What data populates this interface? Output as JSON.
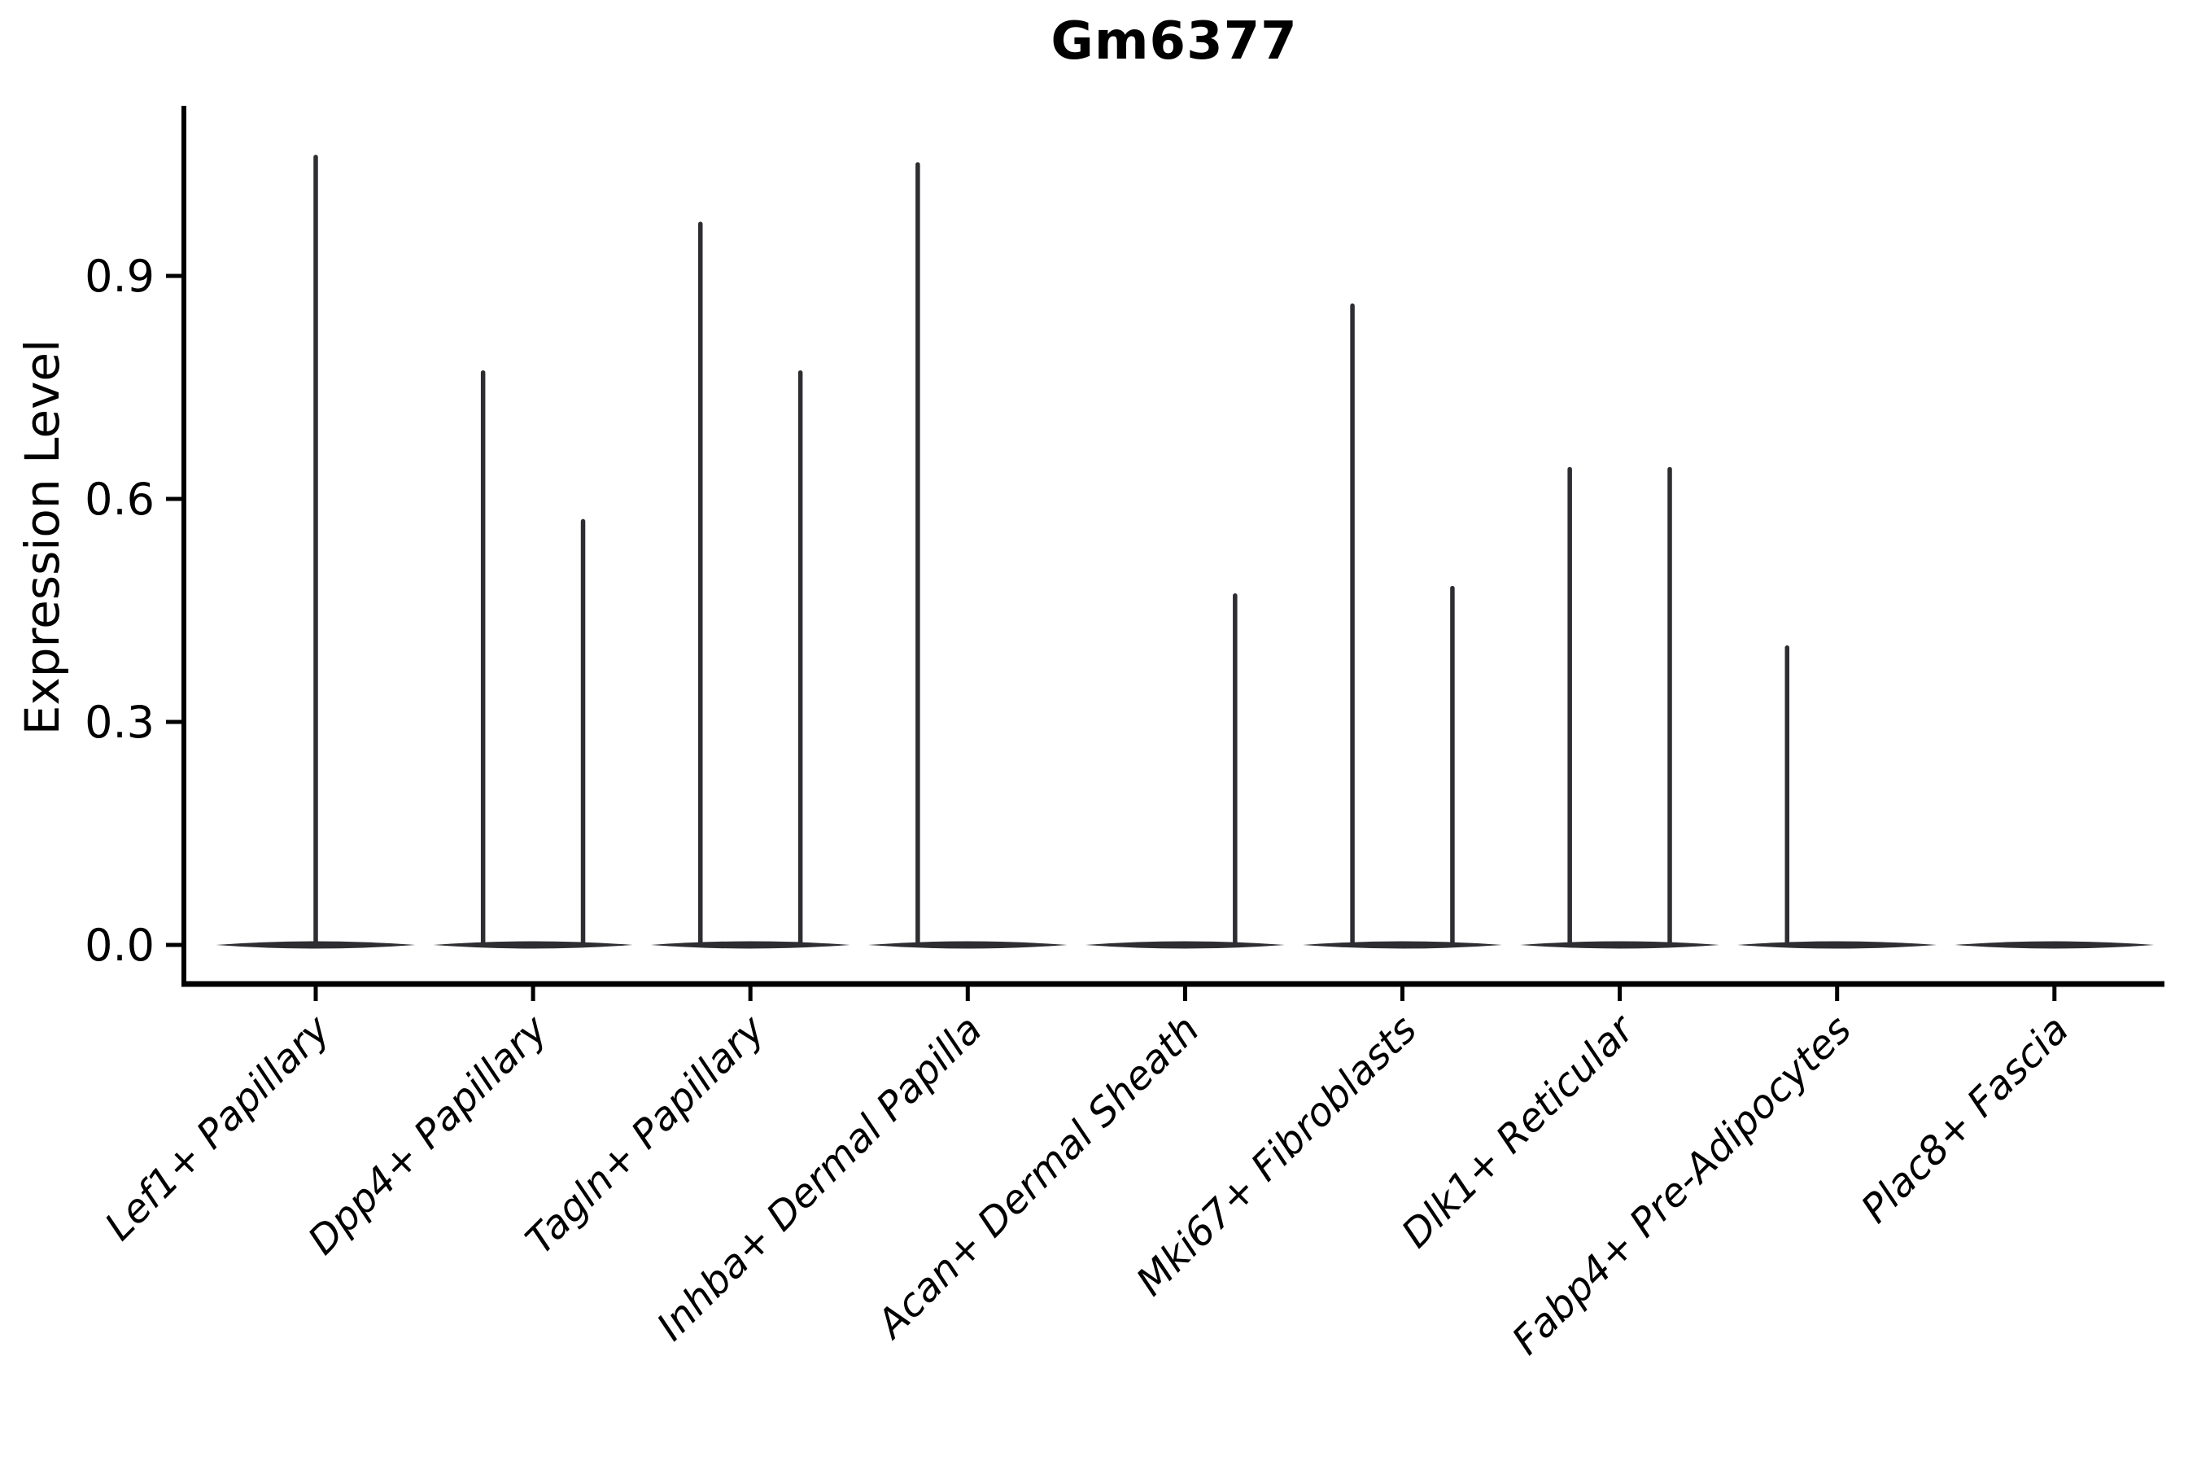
{
  "figure": {
    "title": "Gm6377"
  },
  "y_axis": {
    "label": "Expression Level",
    "ticks": [
      "0.0",
      "0.3",
      "0.6",
      "0.9"
    ]
  },
  "x_axis": {
    "categories": [
      "Lef1+ Papillary",
      "Dpp4+ Papillary",
      "Tagln+ Papillary",
      "Inhba+ Dermal Papilla",
      "Acan+ Dermal Sheath",
      "Mki67+ Fibroblasts",
      "Dlk1+ Reticular",
      "Fabp4+ Pre-Adipocytes",
      "Plac8+ Fascia"
    ],
    "tick_rotation_degrees": 45
  },
  "chart_data": {
    "type": "violin",
    "title": "Gm6377",
    "xlabel": "",
    "ylabel": "Expression Level",
    "yticks": [
      0.0,
      0.3,
      0.6,
      0.9
    ],
    "ylim": [
      0,
      1.13
    ],
    "grid": false,
    "legend": false,
    "categories": [
      "Lef1+ Papillary",
      "Dpp4+ Papillary",
      "Tagln+ Papillary",
      "Inhba+ Dermal Papilla",
      "Acan+ Dermal Sheath",
      "Mki67+ Fibroblasts",
      "Dlk1+ Reticular",
      "Fabp4+ Pre-Adipocytes",
      "Plac8+ Fascia"
    ],
    "description": "Expression is ~0 for almost all cells in every cluster: each violin is a flat body at 0 with thin vertical tails reaching the maximum expression of cells in that (split) group. Offset is the tail position as a fraction of the category slot width (0 = slot center, ±0.23 = left/right split-violin center). Max is the top of the tail in expression units.",
    "violins": [
      {
        "category": "Lef1+ Papillary",
        "tails": [
          {
            "offset": 0.0,
            "max": 1.06
          }
        ]
      },
      {
        "category": "Dpp4+ Papillary",
        "tails": [
          {
            "offset": -0.23,
            "max": 0.77
          },
          {
            "offset": 0.23,
            "max": 0.57
          }
        ]
      },
      {
        "category": "Tagln+ Papillary",
        "tails": [
          {
            "offset": -0.23,
            "max": 0.97
          },
          {
            "offset": 0.23,
            "max": 0.77
          }
        ]
      },
      {
        "category": "Inhba+ Dermal Papilla",
        "tails": [
          {
            "offset": -0.23,
            "max": 1.05
          }
        ]
      },
      {
        "category": "Acan+ Dermal Sheath",
        "tails": [
          {
            "offset": 0.23,
            "max": 0.47
          }
        ]
      },
      {
        "category": "Mki67+ Fibroblasts",
        "tails": [
          {
            "offset": -0.23,
            "max": 0.86
          },
          {
            "offset": 0.23,
            "max": 0.48
          }
        ]
      },
      {
        "category": "Dlk1+ Reticular",
        "tails": [
          {
            "offset": -0.23,
            "max": 0.64
          },
          {
            "offset": 0.23,
            "max": 0.64
          }
        ]
      },
      {
        "category": "Fabp4+ Pre-Adipocytes",
        "tails": [
          {
            "offset": -0.23,
            "max": 0.4
          }
        ]
      },
      {
        "category": "Plac8+ Fascia",
        "tails": []
      }
    ]
  },
  "colors": {
    "violin": "#2e2d32",
    "axis": "#000000",
    "text": "#000000",
    "background": "#ffffff"
  }
}
